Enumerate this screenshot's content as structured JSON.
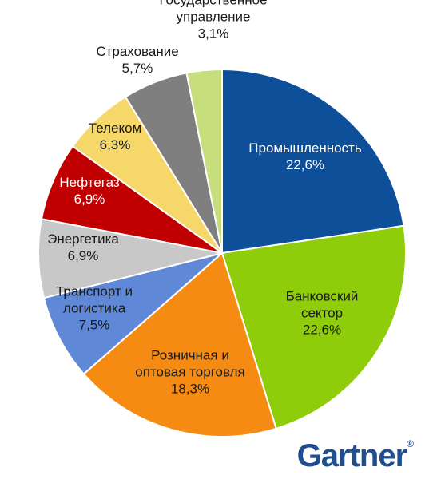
{
  "chart_data": {
    "type": "pie",
    "title": "",
    "slices": [
      {
        "label": "Промышленность",
        "value": 22.6,
        "display": "22,6%",
        "color": "#0d4f99",
        "text_color": "#ffffff"
      },
      {
        "label": "Банковский сектор",
        "value": 22.6,
        "display": "22,6%",
        "color": "#8fcc0a",
        "text_color": "#1a1a1a"
      },
      {
        "label": "Розничная и оптовая торговля",
        "value": 18.3,
        "display": "18,3%",
        "color": "#f58b12",
        "text_color": "#1a1a1a"
      },
      {
        "label": "Транспорт и логистика",
        "value": 7.5,
        "display": "7,5%",
        "color": "#5f88d6",
        "text_color": "#1a1a1a"
      },
      {
        "label": "Энергетика",
        "value": 6.9,
        "display": "6,9%",
        "color": "#c8c8c8",
        "text_color": "#1a1a1a"
      },
      {
        "label": "Нефтегаз",
        "value": 6.9,
        "display": "6,9%",
        "color": "#c00000",
        "text_color": "#ffffff"
      },
      {
        "label": "Телеком",
        "value": 6.3,
        "display": "6,3%",
        "color": "#f6d86a",
        "text_color": "#1a1a1a"
      },
      {
        "label": "Страхование",
        "value": 5.7,
        "display": "5,7%",
        "color": "#7f7f7f",
        "text_color": "#1a1a1a"
      },
      {
        "label": "Государственное управление",
        "value": 3.1,
        "display": "3,1%",
        "color": "#c6df7c",
        "text_color": "#1a1a1a"
      }
    ],
    "label_lines": {
      "Промышленность": [
        "Промышленность",
        "22,6%"
      ],
      "Банковский сектор": [
        "Банковский",
        "сектор",
        "22,6%"
      ],
      "Розничная и оптовая торговля": [
        "Розничная и",
        "оптовая торговля",
        "18,3%"
      ],
      "Транспорт и логистика": [
        "Транспорт и",
        "логистика",
        "7,5%"
      ],
      "Энергетика": [
        "Энергетика",
        "6,9%"
      ],
      "Нефтегаз": [
        "Нефтегаз",
        "6,9%"
      ],
      "Телеком": [
        "Телеком",
        "6,3%"
      ],
      "Страхование": [
        "Страхование",
        "5,7%"
      ],
      "Государственное управление": [
        "Государственное",
        "управление",
        "3,1%"
      ]
    },
    "legend": "none"
  },
  "brand": {
    "logo_text": "Gartner",
    "logo_mark": "®",
    "color": "#1f4f8f"
  }
}
